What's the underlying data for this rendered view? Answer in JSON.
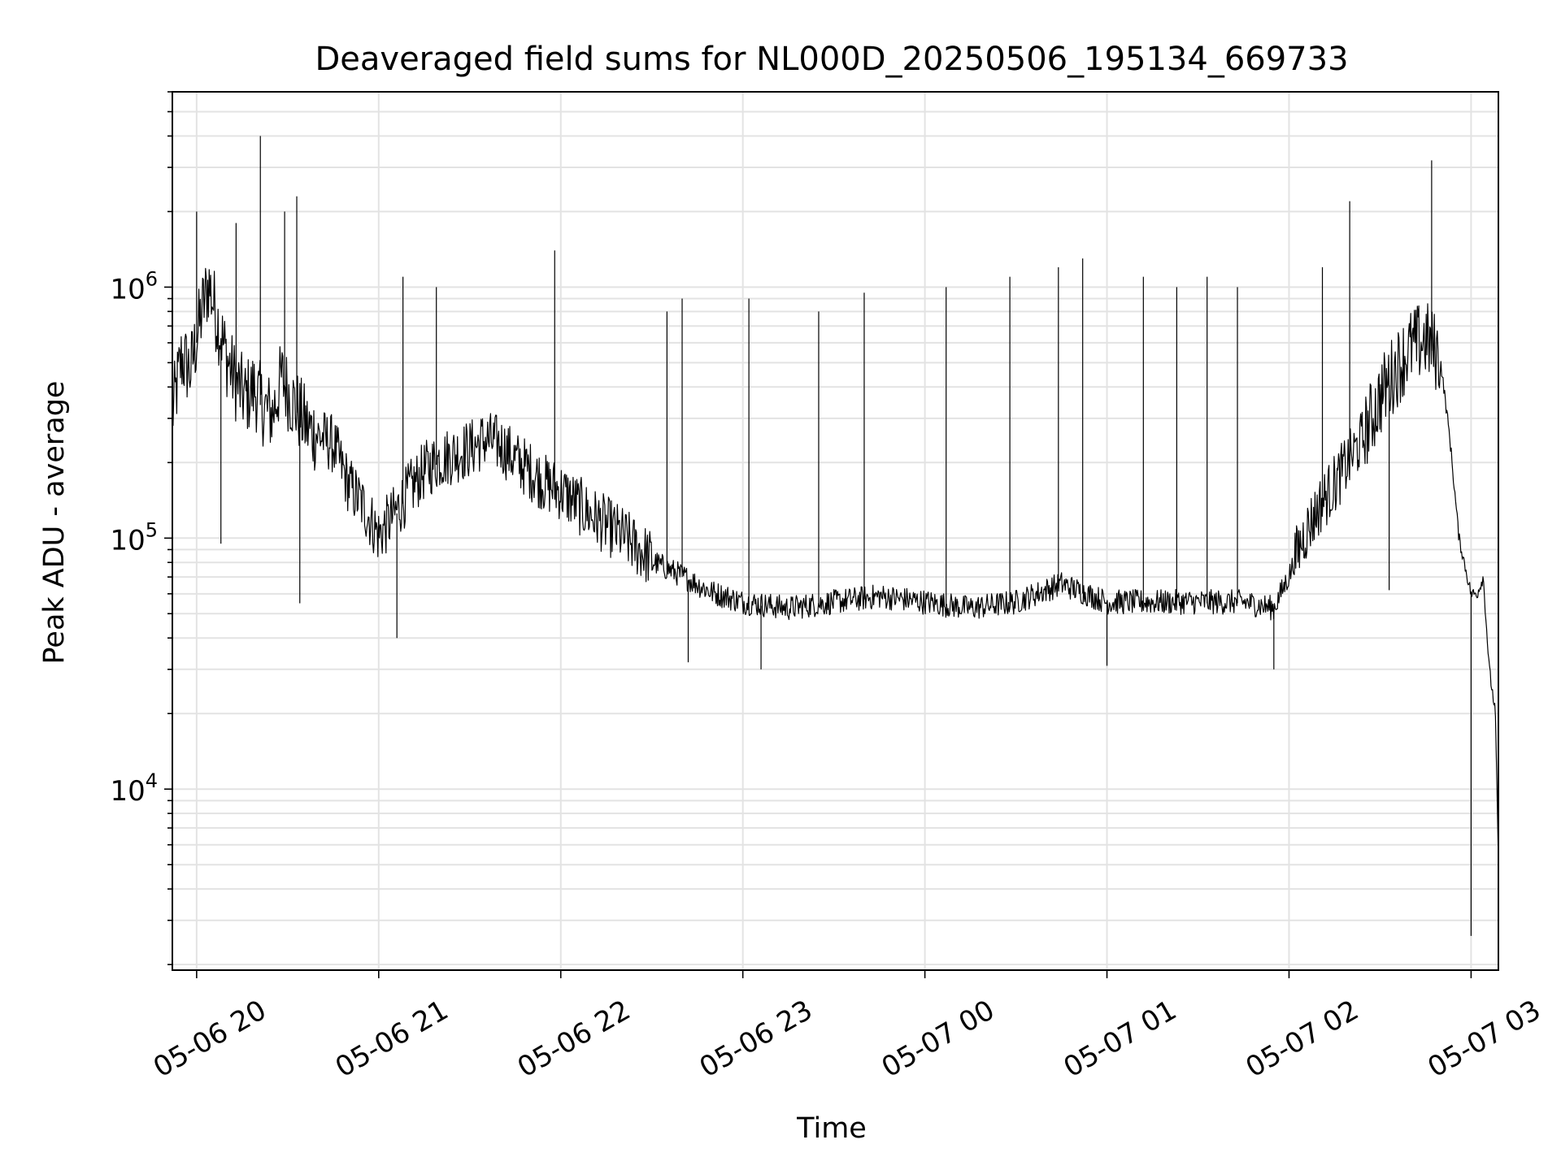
{
  "chart_data": {
    "type": "line",
    "title": "Deaveraged field sums for NL000D_20250506_195134_669733",
    "xlabel": "Time",
    "ylabel": "Peak ADU - average",
    "yscale": "log",
    "grid": true,
    "grid_minor": true,
    "xlim": [
      "2025-05-06 19:52",
      "2025-05-07 03:09"
    ],
    "ylim": [
      1900,
      6000000
    ],
    "x_ticks": [
      {
        "value": "2025-05-06 20:00",
        "label": "05-06 20"
      },
      {
        "value": "2025-05-06 21:00",
        "label": "05-06 21"
      },
      {
        "value": "2025-05-06 22:00",
        "label": "05-06 22"
      },
      {
        "value": "2025-05-06 23:00",
        "label": "05-06 23"
      },
      {
        "value": "2025-05-07 00:00",
        "label": "05-07 00"
      },
      {
        "value": "2025-05-07 01:00",
        "label": "05-07 01"
      },
      {
        "value": "2025-05-07 02:00",
        "label": "05-07 02"
      },
      {
        "value": "2025-05-07 03:00",
        "label": "05-07 03"
      }
    ],
    "y_ticks": [
      {
        "value": 10000,
        "base": "10",
        "exp": "4"
      },
      {
        "value": 100000,
        "base": "10",
        "exp": "5"
      },
      {
        "value": 1000000,
        "base": "10",
        "exp": "6"
      }
    ],
    "series": [
      {
        "color": "#000000",
        "x": [
          "2025-05-06 19:52",
          "2025-05-06 19:55",
          "2025-05-06 19:58",
          "2025-05-06 20:00",
          "2025-05-06 20:02",
          "2025-05-06 20:04",
          "2025-05-06 20:07",
          "2025-05-06 20:10",
          "2025-05-06 20:13",
          "2025-05-06 20:16",
          "2025-05-06 20:19",
          "2025-05-06 20:22",
          "2025-05-06 20:25",
          "2025-05-06 20:28",
          "2025-05-06 20:31",
          "2025-05-06 20:34",
          "2025-05-06 20:37",
          "2025-05-06 20:40",
          "2025-05-06 20:45",
          "2025-05-06 20:50",
          "2025-05-06 20:55",
          "2025-05-06 21:00",
          "2025-05-06 21:05",
          "2025-05-06 21:10",
          "2025-05-06 21:15",
          "2025-05-06 21:20",
          "2025-05-06 21:25",
          "2025-05-06 21:30",
          "2025-05-06 21:35",
          "2025-05-06 21:40",
          "2025-05-06 21:45",
          "2025-05-06 21:50",
          "2025-05-06 21:55",
          "2025-05-06 22:00",
          "2025-05-06 22:10",
          "2025-05-06 22:20",
          "2025-05-06 22:30",
          "2025-05-06 22:40",
          "2025-05-06 22:50",
          "2025-05-06 23:00",
          "2025-05-06 23:15",
          "2025-05-06 23:30",
          "2025-05-06 23:45",
          "2025-05-07 00:00",
          "2025-05-07 00:15",
          "2025-05-07 00:30",
          "2025-05-07 00:45",
          "2025-05-07 01:00",
          "2025-05-07 01:15",
          "2025-05-07 01:30",
          "2025-05-07 01:45",
          "2025-05-07 01:55",
          "2025-05-07 02:00",
          "2025-05-07 02:05",
          "2025-05-07 02:10",
          "2025-05-07 02:15",
          "2025-05-07 02:20",
          "2025-05-07 02:25",
          "2025-05-07 02:30",
          "2025-05-07 02:35",
          "2025-05-07 02:40",
          "2025-05-07 02:45",
          "2025-05-07 02:50",
          "2025-05-07 02:53",
          "2025-05-07 02:56",
          "2025-05-07 03:00",
          "2025-05-07 03:02",
          "2025-05-07 03:04",
          "2025-05-07 03:06",
          "2025-05-07 03:08",
          "2025-05-07 03:09"
        ],
        "values": [
          300000,
          500000,
          450000,
          600000,
          800000,
          1000000,
          700000,
          500000,
          400000,
          350000,
          380000,
          320000,
          300000,
          420000,
          350000,
          300000,
          260000,
          250000,
          230000,
          160000,
          130000,
          100000,
          120000,
          150000,
          180000,
          200000,
          210000,
          220000,
          240000,
          230000,
          200000,
          180000,
          160000,
          150000,
          120000,
          100000,
          80000,
          70000,
          60000,
          55000,
          52000,
          55000,
          58000,
          55000,
          52000,
          55000,
          65000,
          55000,
          55000,
          55000,
          55000,
          52000,
          70000,
          100000,
          130000,
          160000,
          200000,
          250000,
          350000,
          450000,
          550000,
          600000,
          500000,
          250000,
          100000,
          60000,
          60000,
          70000,
          30000,
          20000,
          5000
        ],
        "spikes": [
          [
            "2025-05-06 20:00",
            2000000
          ],
          [
            "2025-05-06 20:13",
            1800000
          ],
          [
            "2025-05-06 20:21",
            4000000
          ],
          [
            "2025-05-06 20:29",
            2000000
          ],
          [
            "2025-05-06 20:33",
            2300000
          ],
          [
            "2025-05-06 21:08",
            1100000
          ],
          [
            "2025-05-06 21:19",
            1000000
          ],
          [
            "2025-05-06 21:58",
            1400000
          ],
          [
            "2025-05-06 22:35",
            800000
          ],
          [
            "2025-05-06 22:40",
            900000
          ],
          [
            "2025-05-06 23:02",
            900000
          ],
          [
            "2025-05-06 23:25",
            800000
          ],
          [
            "2025-05-06 23:40",
            950000
          ],
          [
            "2025-05-07 00:07",
            1000000
          ],
          [
            "2025-05-07 00:28",
            1100000
          ],
          [
            "2025-05-07 00:44",
            1200000
          ],
          [
            "2025-05-07 00:52",
            1300000
          ],
          [
            "2025-05-07 01:12",
            1100000
          ],
          [
            "2025-05-07 01:23",
            1000000
          ],
          [
            "2025-05-07 01:33",
            1100000
          ],
          [
            "2025-05-07 01:43",
            1000000
          ],
          [
            "2025-05-07 02:11",
            1200000
          ],
          [
            "2025-05-07 02:20",
            2200000
          ],
          [
            "2025-05-07 02:47",
            3200000
          ],
          [
            "2025-05-06 20:08",
            95000
          ],
          [
            "2025-05-06 20:34",
            55000
          ],
          [
            "2025-05-06 21:06",
            40000
          ],
          [
            "2025-05-06 22:42",
            32000
          ],
          [
            "2025-05-06 23:06",
            30000
          ],
          [
            "2025-05-07 01:00",
            31000
          ],
          [
            "2025-05-07 01:55",
            30000
          ],
          [
            "2025-05-07 02:33",
            62000
          ],
          [
            "2025-05-07 03:00",
            2600
          ]
        ]
      }
    ]
  }
}
